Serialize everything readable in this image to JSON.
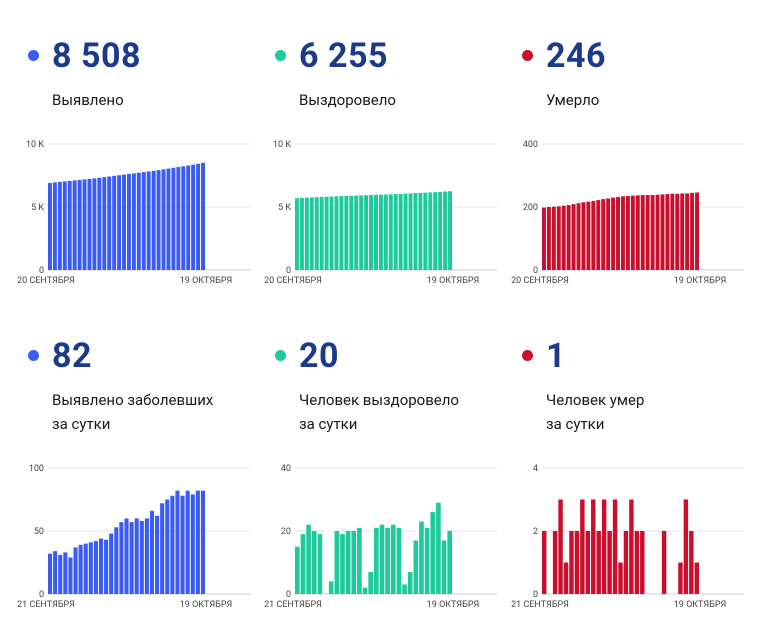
{
  "colors": {
    "blue": "#3b5bf5",
    "green": "#1ec99b",
    "red": "#c8102e",
    "number": "#1c3a8c"
  },
  "panels": [
    {
      "id": "p0",
      "value": "8 508",
      "label1": "Выявлено",
      "label2": "",
      "color": "blue"
    },
    {
      "id": "p1",
      "value": "6 255",
      "label1": "Выздоровело",
      "label2": "",
      "color": "green"
    },
    {
      "id": "p2",
      "value": "246",
      "label1": "Умерло",
      "label2": "",
      "color": "red"
    },
    {
      "id": "p3",
      "value": "82",
      "label1": "Выявлено заболевших",
      "label2": "за сутки",
      "color": "blue"
    },
    {
      "id": "p4",
      "value": "20",
      "label1": "Человек выздоровело",
      "label2": "за сутки",
      "color": "green"
    },
    {
      "id": "p5",
      "value": "1",
      "label1": "Человек умер",
      "label2": "за сутки",
      "color": "red"
    }
  ],
  "chart_data": [
    {
      "type": "bar",
      "color": "blue",
      "ylim": [
        0,
        10000
      ],
      "yticks": [
        0,
        5000,
        10000
      ],
      "ytick_labels": [
        "0",
        "5 K",
        "10 K"
      ],
      "x_start_label": "20 СЕНТЯБРЯ",
      "x_end_label": "19 ОКТЯБРЯ",
      "values": [
        6900,
        6950,
        6990,
        7030,
        7070,
        7110,
        7150,
        7190,
        7230,
        7270,
        7320,
        7370,
        7420,
        7470,
        7520,
        7570,
        7620,
        7670,
        7720,
        7770,
        7820,
        7870,
        7930,
        7990,
        8050,
        8110,
        8170,
        8230,
        8290,
        8360,
        8426,
        8508
      ]
    },
    {
      "type": "bar",
      "color": "green",
      "ylim": [
        0,
        10000
      ],
      "yticks": [
        0,
        5000,
        10000
      ],
      "ytick_labels": [
        "0",
        "5 K",
        "10 K"
      ],
      "x_start_label": "20 СЕНТЯБРЯ",
      "x_end_label": "19 ОКТЯБРЯ",
      "values": [
        5700,
        5720,
        5740,
        5760,
        5780,
        5800,
        5815,
        5830,
        5845,
        5860,
        5875,
        5890,
        5905,
        5920,
        5935,
        5950,
        5965,
        5980,
        5995,
        6010,
        6025,
        6040,
        6060,
        6080,
        6100,
        6120,
        6140,
        6160,
        6180,
        6200,
        6235,
        6255
      ]
    },
    {
      "type": "bar",
      "color": "red",
      "ylim": [
        0,
        400
      ],
      "yticks": [
        0,
        200,
        400
      ],
      "ytick_labels": [
        "0",
        "200",
        "400"
      ],
      "x_start_label": "20 СЕНТЯБРЯ",
      "x_end_label": "19 ОКТЯБРЯ",
      "values": [
        198,
        200,
        201,
        202,
        204,
        206,
        209,
        212,
        215,
        217,
        219,
        222,
        225,
        227,
        230,
        232,
        234,
        235,
        236,
        237,
        238,
        238,
        238,
        239,
        240,
        241,
        242,
        242,
        243,
        243,
        245,
        246
      ]
    },
    {
      "type": "bar",
      "color": "blue",
      "ylim": [
        0,
        100
      ],
      "yticks": [
        0,
        50,
        100
      ],
      "ytick_labels": [
        "0",
        "50",
        "100"
      ],
      "x_start_label": "21 СЕНТЯБРЯ",
      "x_end_label": "19 ОКТЯБРЯ",
      "values": [
        32,
        34,
        31,
        33,
        29,
        37,
        39,
        40,
        41,
        42,
        44,
        43,
        48,
        53,
        57,
        60,
        57,
        60,
        58,
        60,
        66,
        62,
        72,
        75,
        78,
        82,
        78,
        82,
        79,
        82,
        82
      ]
    },
    {
      "type": "bar",
      "color": "green",
      "ylim": [
        0,
        40
      ],
      "yticks": [
        0,
        20,
        40
      ],
      "ytick_labels": [
        "0",
        "20",
        "40"
      ],
      "x_start_label": "21 СЕНТЯБРЯ",
      "x_end_label": "19 ОКТЯБРЯ",
      "values": [
        15,
        19,
        22,
        20,
        19,
        0,
        4,
        20,
        19,
        20,
        20,
        21,
        2,
        7,
        21,
        22,
        21,
        22,
        21,
        3,
        7,
        17,
        23,
        21,
        26,
        29,
        17,
        20
      ]
    },
    {
      "type": "bar",
      "color": "red",
      "ylim": [
        0,
        4
      ],
      "yticks": [
        0,
        2,
        4
      ],
      "ytick_labels": [
        "0",
        "2",
        "4"
      ],
      "x_start_label": "21 СЕНТЯБРЯ",
      "x_end_label": "19 ОКТЯБРЯ",
      "values": [
        2,
        0,
        2,
        3,
        1,
        2,
        2,
        3,
        2,
        3,
        2,
        3,
        2,
        3,
        1,
        2,
        3,
        2,
        2,
        0,
        0,
        0,
        2,
        0,
        0,
        1,
        3,
        2,
        1
      ]
    }
  ]
}
